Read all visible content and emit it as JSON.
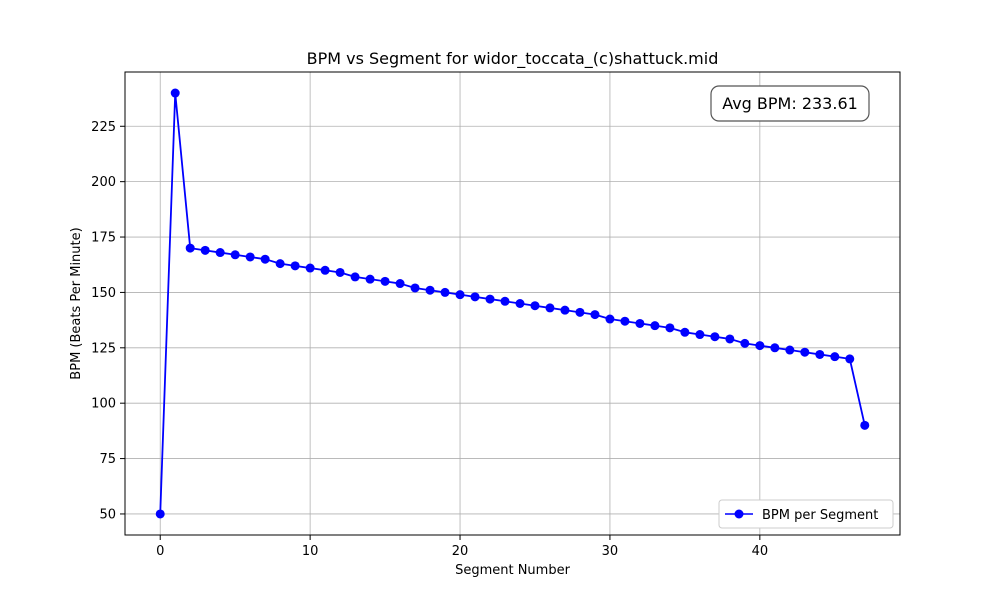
{
  "chart_data": {
    "type": "line",
    "title": "BPM vs Segment for widor_toccata_(c)shattuck.mid",
    "xlabel": "Segment Number",
    "ylabel": "BPM (Beats Per Minute)",
    "xlim": [
      -2.35,
      49.35
    ],
    "ylim": [
      40.5,
      249.5
    ],
    "xticks": [
      0,
      10,
      20,
      30,
      40
    ],
    "yticks": [
      50,
      75,
      100,
      125,
      150,
      175,
      200,
      225
    ],
    "grid": true,
    "legend_position": "bottom-right",
    "annotation": "Avg BPM: 233.61",
    "annotation_position": "top-right",
    "series": [
      {
        "name": "BPM per Segment",
        "color": "#0000ff",
        "marker": "circle",
        "x": [
          0,
          1,
          2,
          3,
          4,
          5,
          6,
          7,
          8,
          9,
          10,
          11,
          12,
          13,
          14,
          15,
          16,
          17,
          18,
          19,
          20,
          21,
          22,
          23,
          24,
          25,
          26,
          27,
          28,
          29,
          30,
          31,
          32,
          33,
          34,
          35,
          36,
          37,
          38,
          39,
          40,
          41,
          42,
          43,
          44,
          45,
          46,
          47
        ],
        "y": [
          50,
          240,
          170,
          169,
          168,
          167,
          166,
          165,
          163,
          162,
          161,
          160,
          159,
          157,
          156,
          155,
          154,
          152,
          151,
          150,
          149,
          148,
          147,
          146,
          145,
          144,
          143,
          142,
          141,
          140,
          138,
          137,
          136,
          135,
          134,
          132,
          131,
          130,
          129,
          127,
          126,
          125,
          124,
          123,
          122,
          121,
          120,
          90
        ]
      }
    ]
  }
}
